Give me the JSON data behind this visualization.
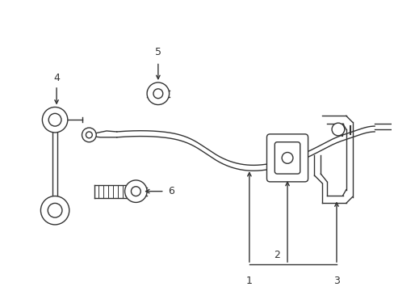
{
  "bg_color": "#ffffff",
  "line_color": "#333333",
  "line_width": 1.0,
  "fig_width": 4.89,
  "fig_height": 3.6,
  "dpi": 100
}
